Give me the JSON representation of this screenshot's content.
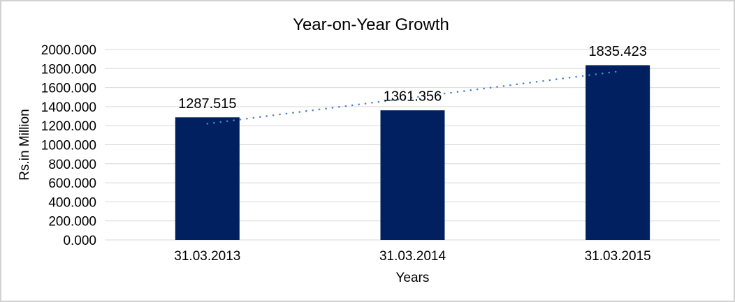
{
  "chart_data": {
    "type": "bar",
    "title": "Year-on-Year Growth",
    "xlabel": "Years",
    "ylabel": "Rs.in Million",
    "categories": [
      "31.03.2013",
      "31.03.2014",
      "31.03.2015"
    ],
    "values": [
      1287.515,
      1361.356,
      1835.423
    ],
    "value_labels": [
      "1287.515",
      "1361.356",
      "1835.423"
    ],
    "ylim": [
      0,
      2000
    ],
    "ytick_step": 200,
    "ytick_labels": [
      "0.000",
      "200.000",
      "400.000",
      "600.000",
      "800.000",
      "1000.000",
      "1200.000",
      "1400.000",
      "1600.000",
      "1800.000",
      "2000.000"
    ],
    "grid": true,
    "legend": "none",
    "trendline": {
      "type": "linear",
      "style": "dotted",
      "start_value": 1221,
      "end_value": 1769
    },
    "colors": {
      "bar": "#002060",
      "trendline": "#4d84c8",
      "gridline": "#d9d9d9",
      "axis_line": "#d9d9d9",
      "text": "#000000",
      "frame_border": "#d2d2d2",
      "background": "#ffffff"
    }
  }
}
